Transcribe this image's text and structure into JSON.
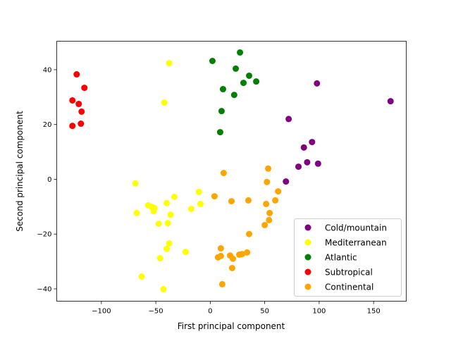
{
  "chart_data": {
    "type": "scatter",
    "title": "",
    "xlabel": "First principal component",
    "ylabel": "Second principal component",
    "xlim": [
      -141,
      180
    ],
    "ylim": [
      -44.5,
      50.4
    ],
    "xticks": [
      -100,
      -50,
      0,
      50,
      100,
      150
    ],
    "yticks": [
      -40,
      -20,
      0,
      20,
      40
    ],
    "grid": false,
    "legend_position": "lower-right",
    "series": [
      {
        "name": "Cold/mountain",
        "color": "#800080",
        "points": [
          [
            165.6,
            28.5
          ],
          [
            98,
            35
          ],
          [
            72,
            22
          ],
          [
            93.5,
            13.6
          ],
          [
            86,
            11.6
          ],
          [
            89,
            6.2
          ],
          [
            99,
            5.7
          ],
          [
            81,
            4.6
          ],
          [
            69.5,
            -0.8
          ]
        ]
      },
      {
        "name": "Mediterranean",
        "color": "#ffff00",
        "points": [
          [
            -37.7,
            42.4
          ],
          [
            -42.2,
            28
          ],
          [
            -68.8,
            -1.5
          ],
          [
            -33,
            -6.4
          ],
          [
            -10.4,
            -4.6
          ],
          [
            -67.5,
            -12.3
          ],
          [
            -57,
            -9.5
          ],
          [
            -54,
            -10
          ],
          [
            -51.3,
            -10.5
          ],
          [
            -52,
            -11.6
          ],
          [
            -40,
            -8.7
          ],
          [
            -9,
            -9
          ],
          [
            -17.5,
            -10.8
          ],
          [
            -36.4,
            -12.9
          ],
          [
            -47.4,
            -16.2
          ],
          [
            -39,
            -16
          ],
          [
            -37.7,
            -23.4
          ],
          [
            -40,
            -25.4
          ],
          [
            -22.7,
            -26.5
          ],
          [
            -46,
            -28.8
          ],
          [
            -63,
            -35.5
          ],
          [
            -43,
            -40.1
          ]
        ]
      },
      {
        "name": "Atlantic",
        "color": "#008000",
        "points": [
          [
            27.3,
            46.3
          ],
          [
            2,
            43.2
          ],
          [
            23.4,
            40.4
          ],
          [
            35.7,
            37.8
          ],
          [
            42.2,
            35.7
          ],
          [
            30.5,
            35.2
          ],
          [
            11.7,
            32.9
          ],
          [
            22,
            30.8
          ],
          [
            10.4,
            24.9
          ],
          [
            9.1,
            17.2
          ]
        ]
      },
      {
        "name": "Subtropical",
        "color": "#ff0000",
        "points": [
          [
            -122.7,
            38.3
          ],
          [
            -115.6,
            33.4
          ],
          [
            -126.6,
            28.8
          ],
          [
            -120.8,
            27.5
          ],
          [
            -118.2,
            24.7
          ],
          [
            -118.8,
            20.3
          ],
          [
            -126.6,
            19.5
          ]
        ]
      },
      {
        "name": "Continental",
        "color": "#ffa500",
        "points": [
          [
            12.3,
            2.3
          ],
          [
            53.2,
            3.9
          ],
          [
            52,
            -1
          ],
          [
            62.3,
            -4.4
          ],
          [
            3.9,
            -6.2
          ],
          [
            35,
            -7.7
          ],
          [
            59.7,
            -7.7
          ],
          [
            19.5,
            -8
          ],
          [
            51.3,
            -9
          ],
          [
            54.5,
            -12.3
          ],
          [
            54,
            -14.9
          ],
          [
            50,
            -16.7
          ],
          [
            35.7,
            -20
          ],
          [
            9.7,
            -25.2
          ],
          [
            33.8,
            -26.7
          ],
          [
            29.2,
            -27.3
          ],
          [
            26.6,
            -27.5
          ],
          [
            18.2,
            -27.8
          ],
          [
            9.7,
            -28
          ],
          [
            7.1,
            -28.5
          ],
          [
            20.8,
            -29
          ],
          [
            20.1,
            -32.4
          ],
          [
            11,
            -38.3
          ]
        ]
      }
    ]
  }
}
